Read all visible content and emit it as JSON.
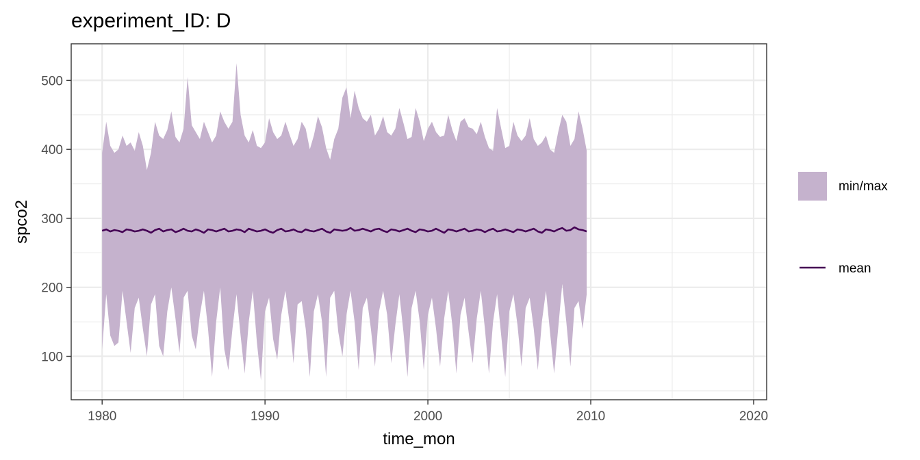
{
  "chart_data": {
    "type": "area",
    "title": "experiment_ID: D",
    "xlabel": "time_mon",
    "ylabel": "spco2",
    "xlim": [
      1978.1,
      2020.8
    ],
    "ylim": [
      37,
      553
    ],
    "x_ticks": [
      1980,
      1990,
      2000,
      2010,
      2020
    ],
    "x_tick_labels": [
      "1980",
      "1990",
      "2000",
      "2010",
      "2020"
    ],
    "y_ticks": [
      100,
      200,
      300,
      400,
      500
    ],
    "y_tick_labels": [
      "100",
      "200",
      "300",
      "400",
      "500"
    ],
    "grid": true,
    "legend_position": "right",
    "x_start": 1980.0,
    "x_step": 0.25,
    "series": [
      {
        "name": "min/max",
        "kind": "ribbon",
        "color": "#c5b2cd",
        "upper": [
          395,
          440,
          405,
          395,
          400,
          420,
          405,
          410,
          398,
          425,
          405,
          370,
          395,
          440,
          420,
          415,
          428,
          455,
          418,
          410,
          430,
          505,
          435,
          425,
          415,
          440,
          425,
          410,
          420,
          455,
          440,
          430,
          440,
          525,
          450,
          420,
          410,
          428,
          405,
          402,
          410,
          445,
          425,
          415,
          420,
          440,
          422,
          405,
          415,
          440,
          430,
          400,
          420,
          448,
          432,
          402,
          385,
          415,
          430,
          475,
          490,
          445,
          485,
          460,
          445,
          440,
          450,
          420,
          430,
          448,
          425,
          420,
          430,
          460,
          438,
          415,
          418,
          460,
          440,
          412,
          430,
          440,
          425,
          418,
          420,
          450,
          428,
          412,
          440,
          445,
          432,
          430,
          422,
          440,
          418,
          402,
          398,
          460,
          430,
          402,
          405,
          440,
          420,
          412,
          420,
          445,
          415,
          405,
          410,
          420,
          400,
          395,
          425,
          450,
          440,
          405,
          415,
          455,
          430,
          398
        ],
        "lower": [
          110,
          190,
          130,
          115,
          120,
          195,
          150,
          105,
          170,
          185,
          140,
          100,
          175,
          190,
          115,
          100,
          165,
          200,
          155,
          105,
          185,
          195,
          130,
          110,
          160,
          195,
          140,
          70,
          150,
          200,
          110,
          80,
          140,
          190,
          130,
          75,
          150,
          195,
          120,
          65,
          165,
          185,
          125,
          95,
          160,
          195,
          150,
          90,
          175,
          180,
          140,
          70,
          165,
          190,
          150,
          70,
          185,
          195,
          135,
          100,
          160,
          195,
          150,
          80,
          170,
          185,
          140,
          85,
          165,
          195,
          160,
          90,
          145,
          190,
          135,
          70,
          170,
          195,
          150,
          80,
          160,
          185,
          140,
          85,
          155,
          195,
          145,
          75,
          160,
          185,
          135,
          90,
          155,
          195,
          140,
          75,
          150,
          190,
          130,
          70,
          165,
          190,
          145,
          85,
          170,
          185,
          140,
          80,
          150,
          195,
          135,
          75,
          140,
          205,
          150,
          85,
          170,
          180,
          140,
          190
        ]
      },
      {
        "name": "mean",
        "kind": "line",
        "color": "#440154",
        "values": [
          282,
          284,
          281,
          283,
          282,
          280,
          284,
          283,
          281,
          282,
          284,
          282,
          279,
          283,
          285,
          281,
          283,
          284,
          280,
          282,
          285,
          282,
          281,
          284,
          282,
          279,
          284,
          283,
          281,
          283,
          285,
          281,
          282,
          284,
          283,
          280,
          285,
          283,
          281,
          282,
          284,
          281,
          279,
          283,
          285,
          281,
          282,
          284,
          281,
          280,
          284,
          282,
          281,
          283,
          285,
          281,
          279,
          284,
          283,
          282,
          283,
          286,
          282,
          283,
          285,
          283,
          281,
          284,
          285,
          282,
          280,
          284,
          283,
          281,
          283,
          285,
          282,
          280,
          284,
          283,
          281,
          282,
          285,
          282,
          279,
          284,
          283,
          281,
          283,
          285,
          281,
          282,
          284,
          283,
          280,
          283,
          285,
          281,
          282,
          284,
          282,
          280,
          284,
          283,
          281,
          283,
          285,
          281,
          279,
          284,
          283,
          281,
          284,
          286,
          282,
          283,
          287,
          284,
          283,
          281
        ]
      }
    ]
  }
}
